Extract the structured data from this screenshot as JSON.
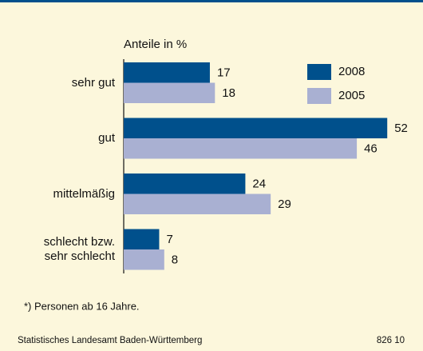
{
  "chart_data": {
    "type": "hbar",
    "x_label": "Anteile in %",
    "categories": [
      "sehr gut",
      "gut",
      "mittelmäßig",
      "schlecht bzw.\nsehr schlecht"
    ],
    "series": [
      {
        "name": "2008",
        "color": "#00508c",
        "values": [
          17,
          52,
          24,
          7
        ]
      },
      {
        "name": "2005",
        "color": "#a9b0d2",
        "values": [
          18,
          46,
          29,
          8
        ]
      }
    ],
    "legend": "upper right",
    "footnote": "*) Personen ab 16 Jahre.",
    "source": "Statistisches Landesamt Baden-Württemberg",
    "code": "826 10"
  }
}
